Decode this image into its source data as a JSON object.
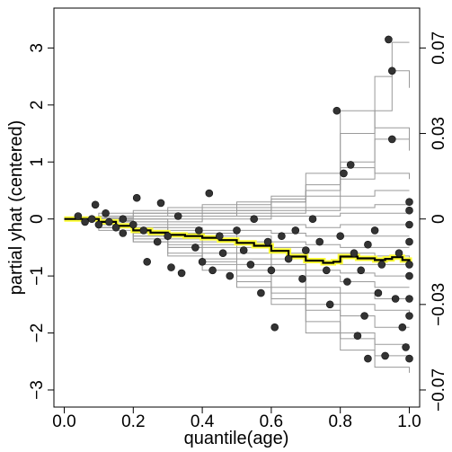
{
  "chart_data": {
    "type": "line",
    "title": "",
    "xlabel": "quantile(age)",
    "ylabel": "partial yhat (centered)",
    "xlim": [
      -0.03,
      1.03
    ],
    "ylim": [
      -3.3,
      3.7
    ],
    "x_ticks": [
      "0.0",
      "0.2",
      "0.4",
      "0.6",
      "0.8",
      "1.0"
    ],
    "x_tick_values": [
      0,
      0.2,
      0.4,
      0.6,
      0.8,
      1.0
    ],
    "y_ticks": [
      "3",
      "2",
      "1",
      "0",
      "−1",
      "−2",
      "−3"
    ],
    "y_tick_values": [
      3,
      2,
      1,
      0,
      -1,
      -2,
      -3
    ],
    "y2_ticks": [
      "0.07",
      "0.03",
      "0",
      "−0.03",
      "−0.07"
    ],
    "y2_tick_values": [
      3.0,
      1.5,
      0,
      -1.5,
      -3.0
    ],
    "grid": false,
    "colors": {
      "ice": "#9a9a9a",
      "pdp_glow": "#ffff33",
      "pdp": "#000000",
      "points": "#333333"
    },
    "series": [
      {
        "style": "pdp",
        "x": [
          0.0,
          0.05,
          0.1,
          0.15,
          0.2,
          0.25,
          0.3,
          0.35,
          0.4,
          0.45,
          0.5,
          0.55,
          0.6,
          0.65,
          0.7,
          0.75,
          0.78,
          0.8,
          0.85,
          0.9,
          0.93,
          0.95,
          0.98,
          1.0
        ],
        "values": [
          0.0,
          0.0,
          -0.05,
          -0.12,
          -0.2,
          -0.24,
          -0.28,
          -0.3,
          -0.33,
          -0.37,
          -0.42,
          -0.47,
          -0.56,
          -0.66,
          -0.73,
          -0.77,
          -0.75,
          -0.66,
          -0.69,
          -0.72,
          -0.7,
          -0.67,
          -0.72,
          -0.76
        ]
      }
    ],
    "ice_curves_approx": [
      {
        "x": [
          0,
          0.1,
          0.2,
          0.3,
          0.4,
          0.5,
          0.6,
          0.7,
          0.8,
          0.9,
          0.95,
          1.0
        ],
        "values": [
          0,
          0.1,
          0.15,
          0.2,
          0.25,
          0.3,
          0.4,
          0.6,
          1.5,
          2.5,
          3.1,
          3.1
        ]
      },
      {
        "x": [
          0,
          0.1,
          0.2,
          0.3,
          0.4,
          0.5,
          0.6,
          0.7,
          0.8,
          0.9,
          0.95,
          1.0
        ],
        "values": [
          0,
          0.05,
          0.1,
          0.15,
          0.2,
          0.25,
          0.35,
          0.5,
          1.0,
          1.9,
          2.6,
          2.3
        ]
      },
      {
        "x": [
          0,
          0.1,
          0.2,
          0.3,
          0.4,
          0.5,
          0.6,
          0.7,
          0.8,
          0.9,
          1.0
        ],
        "values": [
          0,
          0.05,
          0.1,
          0.1,
          0.15,
          0.2,
          0.3,
          0.5,
          1.9,
          1.6,
          1.3
        ]
      },
      {
        "x": [
          0,
          0.1,
          0.2,
          0.3,
          0.4,
          0.5,
          0.6,
          0.7,
          0.8,
          0.9,
          1.0
        ],
        "values": [
          0,
          0.05,
          0.05,
          0.1,
          0.1,
          0.15,
          0.2,
          0.4,
          0.7,
          1.4,
          1.2
        ]
      },
      {
        "x": [
          0,
          0.1,
          0.2,
          0.3,
          0.4,
          0.5,
          0.6,
          0.7,
          0.8,
          0.9,
          1.0
        ],
        "values": [
          0,
          0.05,
          0.05,
          0.05,
          0.1,
          0.15,
          0.3,
          0.8,
          0.9,
          0.8,
          0.7
        ]
      },
      {
        "x": [
          0,
          0.1,
          0.2,
          0.3,
          0.4,
          0.5,
          0.6,
          0.7,
          0.8,
          0.9,
          1.0
        ],
        "values": [
          0,
          0.02,
          0.05,
          0.05,
          0.05,
          0.1,
          0.15,
          0.2,
          0.4,
          0.5,
          0.5
        ]
      },
      {
        "x": [
          0,
          0.1,
          0.2,
          0.3,
          0.4,
          0.5,
          0.6,
          0.7,
          0.8,
          0.9,
          1.0
        ],
        "values": [
          0,
          0.02,
          0.0,
          0.0,
          0.05,
          0.05,
          0.1,
          0.15,
          0.2,
          0.25,
          0.3
        ]
      },
      {
        "x": [
          0,
          0.1,
          0.2,
          0.3,
          0.4,
          0.5,
          0.6,
          0.7,
          0.8,
          0.9,
          1.0
        ],
        "values": [
          0,
          0.0,
          0.0,
          -0.05,
          0.0,
          0.0,
          0.05,
          0.05,
          0.1,
          0.1,
          0.1
        ]
      },
      {
        "x": [
          0,
          0.1,
          0.2,
          0.3,
          0.4,
          0.5,
          0.6,
          0.7,
          0.8,
          0.9,
          1.0
        ],
        "values": [
          0,
          -0.02,
          -0.05,
          -0.1,
          -0.1,
          -0.1,
          -0.1,
          -0.15,
          -0.1,
          -0.1,
          -0.05
        ]
      },
      {
        "x": [
          0,
          0.1,
          0.2,
          0.3,
          0.4,
          0.5,
          0.6,
          0.7,
          0.8,
          0.9,
          1.0
        ],
        "values": [
          0,
          -0.03,
          -0.1,
          -0.15,
          -0.2,
          -0.2,
          -0.25,
          -0.3,
          -0.3,
          -0.3,
          -0.3
        ]
      },
      {
        "x": [
          0,
          0.1,
          0.2,
          0.3,
          0.4,
          0.5,
          0.6,
          0.7,
          0.8,
          0.9,
          1.0
        ],
        "values": [
          0,
          -0.05,
          -0.15,
          -0.2,
          -0.25,
          -0.3,
          -0.4,
          -0.45,
          -0.5,
          -0.5,
          -0.5
        ]
      },
      {
        "x": [
          0,
          0.1,
          0.2,
          0.3,
          0.4,
          0.5,
          0.6,
          0.7,
          0.8,
          0.9,
          1.0
        ],
        "values": [
          0,
          -0.05,
          -0.15,
          -0.25,
          -0.3,
          -0.4,
          -0.5,
          -0.6,
          -0.6,
          -0.65,
          -0.7
        ]
      },
      {
        "x": [
          0,
          0.1,
          0.2,
          0.3,
          0.4,
          0.5,
          0.6,
          0.7,
          0.8,
          0.9,
          1.0
        ],
        "values": [
          0,
          -0.05,
          -0.2,
          -0.3,
          -0.35,
          -0.45,
          -0.6,
          -0.75,
          -0.8,
          -0.8,
          -0.8
        ]
      },
      {
        "x": [
          0,
          0.1,
          0.2,
          0.3,
          0.4,
          0.5,
          0.6,
          0.7,
          0.8,
          0.9,
          1.0
        ],
        "values": [
          0,
          -0.1,
          -0.2,
          -0.3,
          -0.4,
          -0.5,
          -0.7,
          -0.9,
          -0.95,
          -1.0,
          -1.0
        ]
      },
      {
        "x": [
          0,
          0.1,
          0.2,
          0.3,
          0.4,
          0.5,
          0.6,
          0.7,
          0.8,
          0.9,
          1.0
        ],
        "values": [
          0,
          -0.1,
          -0.25,
          -0.35,
          -0.45,
          -0.6,
          -0.8,
          -1.0,
          -1.1,
          -1.2,
          -1.2
        ]
      },
      {
        "x": [
          0,
          0.1,
          0.2,
          0.3,
          0.4,
          0.5,
          0.6,
          0.7,
          0.8,
          0.9,
          1.0
        ],
        "values": [
          0,
          -0.1,
          -0.25,
          -0.4,
          -0.5,
          -0.7,
          -0.9,
          -1.2,
          -1.3,
          -1.4,
          -1.4
        ]
      },
      {
        "x": [
          0,
          0.1,
          0.2,
          0.3,
          0.4,
          0.5,
          0.6,
          0.7,
          0.8,
          0.9,
          1.0
        ],
        "values": [
          0,
          -0.1,
          -0.3,
          -0.45,
          -0.6,
          -0.8,
          -1.0,
          -1.3,
          -1.5,
          -1.6,
          -1.7
        ]
      },
      {
        "x": [
          0,
          0.1,
          0.2,
          0.3,
          0.4,
          0.5,
          0.6,
          0.7,
          0.8,
          0.9,
          1.0
        ],
        "values": [
          0,
          -0.15,
          -0.3,
          -0.5,
          -0.7,
          -0.9,
          -1.2,
          -1.5,
          -1.7,
          -1.9,
          -1.9
        ]
      },
      {
        "x": [
          0,
          0.1,
          0.2,
          0.3,
          0.4,
          0.5,
          0.6,
          0.7,
          0.8,
          0.9,
          1.0
        ],
        "values": [
          0,
          -0.15,
          -0.35,
          -0.5,
          -0.75,
          -1.0,
          -1.3,
          -1.6,
          -2.0,
          -2.2,
          -2.2
        ]
      },
      {
        "x": [
          0,
          0.1,
          0.2,
          0.3,
          0.4,
          0.5,
          0.6,
          0.7,
          0.8,
          0.9,
          1.0
        ],
        "values": [
          0,
          -0.15,
          -0.4,
          -0.6,
          -0.8,
          -1.1,
          -1.4,
          -1.8,
          -2.1,
          -2.4,
          -2.45
        ]
      },
      {
        "x": [
          0,
          0.1,
          0.2,
          0.3,
          0.4,
          0.5,
          0.6,
          0.7,
          0.8,
          0.9,
          1.0
        ],
        "values": [
          0,
          -0.2,
          -0.4,
          -0.65,
          -0.9,
          -1.2,
          -1.5,
          -2.0,
          -2.3,
          -2.6,
          -2.7
        ]
      }
    ],
    "observed_points": [
      {
        "x": 0.04,
        "y": 0.05
      },
      {
        "x": 0.06,
        "y": -0.05
      },
      {
        "x": 0.08,
        "y": 0.0
      },
      {
        "x": 0.09,
        "y": 0.25
      },
      {
        "x": 0.1,
        "y": -0.1
      },
      {
        "x": 0.12,
        "y": 0.1
      },
      {
        "x": 0.13,
        "y": -0.05
      },
      {
        "x": 0.15,
        "y": -0.15
      },
      {
        "x": 0.17,
        "y": 0.0
      },
      {
        "x": 0.17,
        "y": -0.25
      },
      {
        "x": 0.21,
        "y": 0.37
      },
      {
        "x": 0.2,
        "y": -0.1
      },
      {
        "x": 0.23,
        "y": -0.2
      },
      {
        "x": 0.24,
        "y": -0.75
      },
      {
        "x": 0.28,
        "y": 0.28
      },
      {
        "x": 0.27,
        "y": -0.4
      },
      {
        "x": 0.3,
        "y": -0.3
      },
      {
        "x": 0.31,
        "y": -0.85
      },
      {
        "x": 0.33,
        "y": 0.05
      },
      {
        "x": 0.34,
        "y": -0.95
      },
      {
        "x": 0.38,
        "y": -0.5
      },
      {
        "x": 0.39,
        "y": -0.2
      },
      {
        "x": 0.4,
        "y": -0.75
      },
      {
        "x": 0.42,
        "y": 0.45
      },
      {
        "x": 0.43,
        "y": -0.9
      },
      {
        "x": 0.45,
        "y": -0.3
      },
      {
        "x": 0.46,
        "y": -0.6
      },
      {
        "x": 0.48,
        "y": -1.0
      },
      {
        "x": 0.5,
        "y": -0.2
      },
      {
        "x": 0.52,
        "y": -0.55
      },
      {
        "x": 0.54,
        "y": -0.8
      },
      {
        "x": 0.55,
        "y": 0.0
      },
      {
        "x": 0.57,
        "y": -1.3
      },
      {
        "x": 0.59,
        "y": -0.4
      },
      {
        "x": 0.6,
        "y": -0.9
      },
      {
        "x": 0.61,
        "y": -1.9
      },
      {
        "x": 0.63,
        "y": -0.3
      },
      {
        "x": 0.65,
        "y": -0.7
      },
      {
        "x": 0.67,
        "y": -0.2
      },
      {
        "x": 0.69,
        "y": -1.05
      },
      {
        "x": 0.7,
        "y": -0.55
      },
      {
        "x": 0.72,
        "y": 0.0
      },
      {
        "x": 0.74,
        "y": -0.4
      },
      {
        "x": 0.76,
        "y": -0.9
      },
      {
        "x": 0.77,
        "y": -1.5
      },
      {
        "x": 0.79,
        "y": 1.9
      },
      {
        "x": 0.8,
        "y": -0.3
      },
      {
        "x": 0.81,
        "y": 0.8
      },
      {
        "x": 0.82,
        "y": -1.1
      },
      {
        "x": 0.83,
        "y": 0.95
      },
      {
        "x": 0.84,
        "y": -0.6
      },
      {
        "x": 0.85,
        "y": -2.05
      },
      {
        "x": 0.86,
        "y": -0.9
      },
      {
        "x": 0.87,
        "y": -1.7
      },
      {
        "x": 0.88,
        "y": -0.45
      },
      {
        "x": 0.88,
        "y": -2.45
      },
      {
        "x": 0.9,
        "y": -0.2
      },
      {
        "x": 0.91,
        "y": -1.3
      },
      {
        "x": 0.92,
        "y": -0.8
      },
      {
        "x": 0.93,
        "y": -2.4
      },
      {
        "x": 0.94,
        "y": 3.15
      },
      {
        "x": 0.95,
        "y": 2.6
      },
      {
        "x": 0.95,
        "y": 1.4
      },
      {
        "x": 0.96,
        "y": -1.4
      },
      {
        "x": 0.97,
        "y": -0.6
      },
      {
        "x": 0.98,
        "y": -1.9
      },
      {
        "x": 0.99,
        "y": -2.25
      },
      {
        "x": 1.0,
        "y": 0.3
      },
      {
        "x": 1.0,
        "y": 0.15
      },
      {
        "x": 1.0,
        "y": -0.1
      },
      {
        "x": 1.0,
        "y": -0.4
      },
      {
        "x": 1.0,
        "y": -0.8
      },
      {
        "x": 1.0,
        "y": -1.0
      },
      {
        "x": 1.0,
        "y": -1.4
      },
      {
        "x": 1.0,
        "y": -1.7
      },
      {
        "x": 1.0,
        "y": -2.45
      }
    ]
  }
}
